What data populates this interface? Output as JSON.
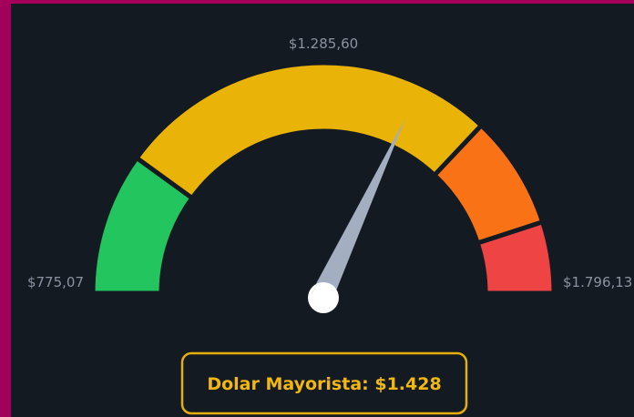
{
  "chart_data": {
    "type": "gauge",
    "xlim": [
      775.07,
      1796.13
    ],
    "xticks": [
      {
        "value": 775.07,
        "label": "$775,07"
      },
      {
        "value": 1285.6,
        "label": "$1.285,60"
      },
      {
        "value": 1796.13,
        "label": "$1.796,13"
      }
    ],
    "bands": [
      {
        "from": 775.07,
        "to": 979,
        "color": "#22c55e"
      },
      {
        "from": 979,
        "to": 1531,
        "color": "#eab308"
      },
      {
        "from": 1531,
        "to": 1694,
        "color": "#f97316"
      },
      {
        "from": 1694,
        "to": 1796.13,
        "color": "#ef4444"
      }
    ],
    "label": "Dolar Mayorista:",
    "value": 1428,
    "value_label": "$1.428",
    "needle_color": "#a3aec0"
  }
}
